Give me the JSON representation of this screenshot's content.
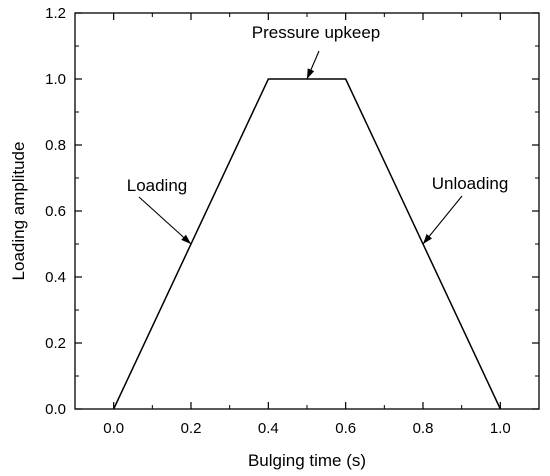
{
  "chart_data": {
    "type": "line",
    "xlabel": "Bulging time (s)",
    "ylabel": "Loading amplitude",
    "xlim": [
      -0.1,
      1.1
    ],
    "ylim": [
      0.0,
      1.2
    ],
    "x_ticks": [
      "0.0",
      "0.2",
      "0.4",
      "0.6",
      "0.8",
      "1.0"
    ],
    "y_ticks": [
      "0.0",
      "0.2",
      "0.4",
      "0.6",
      "0.8",
      "1.0",
      "1.2"
    ],
    "grid": false,
    "legend": "none",
    "series": [
      {
        "x": [
          0.0,
          0.4,
          0.6,
          1.0
        ],
        "y": [
          0.0,
          1.0,
          1.0,
          0.0
        ],
        "color": "#000000"
      }
    ],
    "annotations": [
      {
        "text": "Loading",
        "target": [
          0.2,
          0.5
        ]
      },
      {
        "text": "Pressure upkeep",
        "target": [
          0.5,
          1.0
        ]
      },
      {
        "text": "Unloading",
        "target": [
          0.8,
          0.5
        ]
      }
    ]
  }
}
